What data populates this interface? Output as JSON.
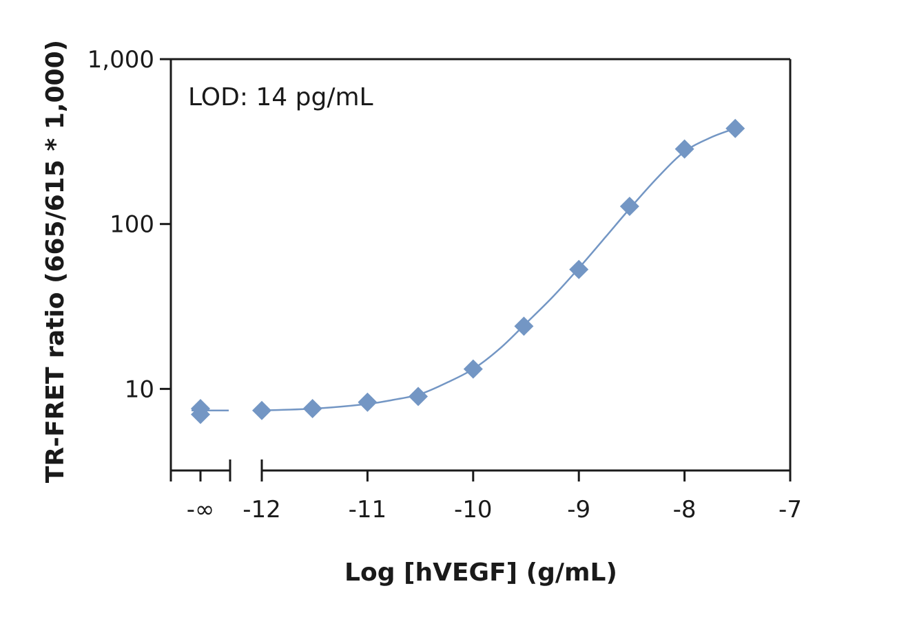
{
  "chart_data": {
    "type": "scatter",
    "xlabel": "Log [hVEGF] (g/mL)",
    "ylabel": "TR-FRET ratio (665/615 * 1,000)",
    "annotation": "LOD: 14 pg/mL",
    "y_scale": "log",
    "ylim": [
      3.2,
      1000
    ],
    "xlim": [
      -12.85,
      -7
    ],
    "x_ticks": [
      {
        "value": -12,
        "label": "-12"
      },
      {
        "value": -11,
        "label": "-11"
      },
      {
        "value": -10,
        "label": "-10"
      },
      {
        "value": -9,
        "label": "-9"
      },
      {
        "value": -8,
        "label": "-8"
      },
      {
        "value": -7,
        "label": "-7"
      }
    ],
    "x_break_label": "-∞",
    "y_ticks": [
      {
        "value": 10,
        "label": "10"
      },
      {
        "value": 100,
        "label": "100"
      },
      {
        "value": 1000,
        "label": "1,000"
      }
    ],
    "grid": false,
    "marker": "diamond",
    "color": "#7396c4",
    "series": [
      {
        "points": [
          {
            "x": -12,
            "y": 7.4
          },
          {
            "x": -11.52,
            "y": 7.6
          },
          {
            "x": -11,
            "y": 8.3
          },
          {
            "x": -10.52,
            "y": 9.0
          },
          {
            "x": -10,
            "y": 13.2
          },
          {
            "x": -9.52,
            "y": 24
          },
          {
            "x": -9,
            "y": 53
          },
          {
            "x": -8.52,
            "y": 128
          },
          {
            "x": -8,
            "y": 285
          },
          {
            "x": -7.52,
            "y": 380
          }
        ],
        "zero_dose_points": [
          {
            "x": "-∞",
            "y": 7.6
          },
          {
            "x": "-∞",
            "y": 7.0
          }
        ],
        "fit_curve": [
          {
            "x": -12.0,
            "y": 7.4
          },
          {
            "x": -11.5,
            "y": 7.6
          },
          {
            "x": -11.0,
            "y": 8.1
          },
          {
            "x": -10.75,
            "y": 8.6
          },
          {
            "x": -10.5,
            "y": 9.3
          },
          {
            "x": -10.25,
            "y": 10.9
          },
          {
            "x": -10.0,
            "y": 13.2
          },
          {
            "x": -9.75,
            "y": 17.5
          },
          {
            "x": -9.5,
            "y": 25
          },
          {
            "x": -9.25,
            "y": 36
          },
          {
            "x": -9.0,
            "y": 54
          },
          {
            "x": -8.75,
            "y": 83
          },
          {
            "x": -8.5,
            "y": 128
          },
          {
            "x": -8.25,
            "y": 193
          },
          {
            "x": -8.0,
            "y": 275
          },
          {
            "x": -7.75,
            "y": 335
          },
          {
            "x": -7.52,
            "y": 380
          }
        ],
        "zero_dose_line_y": 7.4
      }
    ]
  }
}
